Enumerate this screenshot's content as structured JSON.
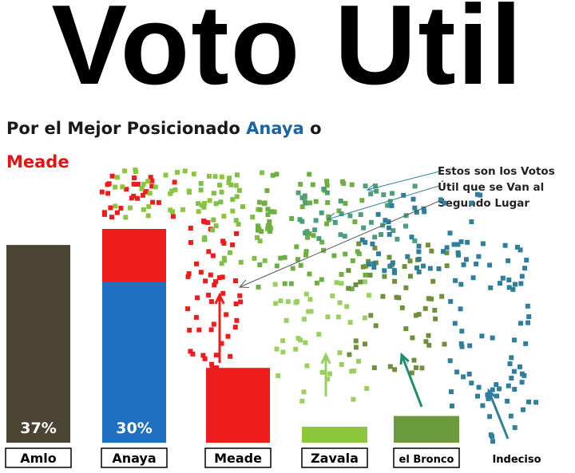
{
  "title": "Voto Útil",
  "subtitle": {
    "prefix": "Por el Mejor Posicionado",
    "candidate_1": "Anaya",
    "connector": "o",
    "candidate_2": "Meade"
  },
  "annotation": "Estos son los Votos Útil que se Van al Segundo Lugar",
  "colors": {
    "amlo": "#4b4432",
    "anaya": "#1f70c1",
    "meade": "#ee1c1c",
    "zavala": "#8cc63f",
    "bronco": "#6b9a3c",
    "indeciso": "#2f7f9c",
    "subtitle_blue": "#1b64a8",
    "subtitle_red": "#e21414"
  },
  "chart_data": {
    "type": "bar",
    "categories": [
      "Amlo",
      "Anaya",
      "Meade",
      "Zavala",
      "el Bronco",
      "Indeciso"
    ],
    "values": [
      37,
      30,
      14,
      3,
      5,
      0
    ],
    "stacked_extra": {
      "category": "Anaya",
      "label": "Meade",
      "value": 10
    },
    "data_labels": [
      "37%",
      "30%",
      "",
      "",
      "",
      ""
    ],
    "ylim": [
      0,
      40
    ]
  }
}
